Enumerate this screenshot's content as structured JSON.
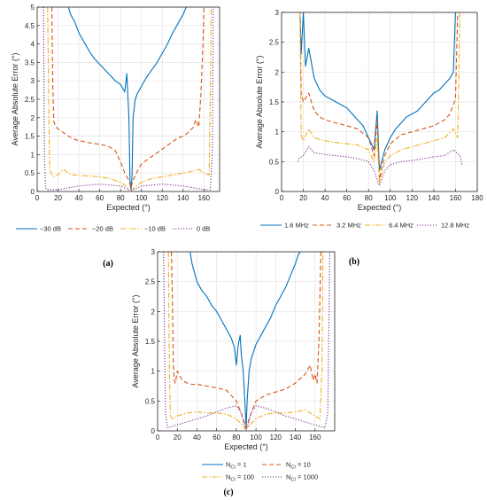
{
  "colors": {
    "blue": "#0072BD",
    "red": "#D95319",
    "yellow": "#EDB120",
    "purple": "#7E2F8E"
  },
  "chart_data": [
    {
      "panel": "(a)",
      "type": "line",
      "xlabel": "Expected (°)",
      "ylabel": "Average Absolute Error (°)",
      "xlim": [
        0,
        175
      ],
      "ylim": [
        0,
        5
      ],
      "xticks": [
        0,
        20,
        40,
        60,
        80,
        100,
        120,
        140,
        160
      ],
      "yticks": [
        0,
        0.5,
        1,
        1.5,
        2,
        2.5,
        3,
        3.5,
        4,
        4.5,
        5
      ],
      "grid": true,
      "legend_position": "below",
      "series": [
        {
          "name": "−30 dB",
          "color": "blue",
          "dash": "solid",
          "x": [
            30,
            32,
            36,
            40,
            45,
            50,
            55,
            60,
            65,
            70,
            75,
            80,
            84,
            86,
            88,
            89,
            90,
            91,
            92,
            94,
            96,
            100,
            105,
            110,
            115,
            120,
            125,
            130,
            135,
            140,
            143
          ],
          "y": [
            5.0,
            4.8,
            4.6,
            4.3,
            4.05,
            3.8,
            3.6,
            3.45,
            3.3,
            3.15,
            3.0,
            2.9,
            2.7,
            3.2,
            2.0,
            0.3,
            0.05,
            0.4,
            2.0,
            2.5,
            2.65,
            2.85,
            3.1,
            3.3,
            3.5,
            3.75,
            4.0,
            4.3,
            4.55,
            4.8,
            5.0
          ]
        },
        {
          "name": "−20 dB",
          "color": "red",
          "dash": "dash",
          "x": [
            14,
            15,
            16,
            18,
            20,
            25,
            30,
            35,
            40,
            45,
            50,
            55,
            60,
            65,
            70,
            75,
            80,
            84,
            88,
            90,
            92,
            96,
            100,
            105,
            110,
            115,
            120,
            125,
            130,
            135,
            140,
            145,
            150,
            152,
            155,
            157,
            159,
            160
          ],
          "y": [
            5.0,
            2.8,
            1.9,
            1.75,
            1.7,
            1.6,
            1.5,
            1.42,
            1.38,
            1.35,
            1.32,
            1.3,
            1.28,
            1.25,
            1.2,
            1.1,
            0.8,
            0.5,
            0.3,
            0.1,
            0.3,
            0.55,
            0.75,
            0.85,
            0.95,
            1.05,
            1.15,
            1.25,
            1.35,
            1.45,
            1.5,
            1.6,
            1.75,
            1.95,
            1.75,
            2.6,
            4.0,
            5.0
          ]
        },
        {
          "name": "−10 dB",
          "color": "yellow",
          "dash": "dashdot",
          "x": [
            10,
            11,
            12,
            14,
            16,
            20,
            25,
            30,
            35,
            40,
            50,
            60,
            70,
            80,
            85,
            88,
            90,
            92,
            95,
            100,
            110,
            120,
            130,
            140,
            150,
            155,
            160,
            165,
            166,
            167
          ],
          "y": [
            5.0,
            2.5,
            0.6,
            0.45,
            0.4,
            0.45,
            0.6,
            0.5,
            0.45,
            0.43,
            0.42,
            0.4,
            0.35,
            0.25,
            0.15,
            0.08,
            0.05,
            0.08,
            0.15,
            0.25,
            0.35,
            0.4,
            0.45,
            0.5,
            0.55,
            0.6,
            0.5,
            0.45,
            2.5,
            5.0
          ]
        },
        {
          "name": "0 dB",
          "color": "purple",
          "dash": "dot",
          "x": [
            6,
            7,
            8,
            10,
            20,
            40,
            60,
            80,
            90,
            100,
            120,
            140,
            160,
            166,
            168,
            169
          ],
          "y": [
            5.0,
            1.0,
            0.1,
            0.05,
            0.05,
            0.15,
            0.2,
            0.15,
            0.02,
            0.15,
            0.2,
            0.15,
            0.05,
            0.05,
            1.0,
            5.0
          ]
        }
      ]
    },
    {
      "panel": "(b)",
      "type": "line",
      "xlabel": "Expected (°)",
      "ylabel": "Average Absolute Error (°)",
      "xlim": [
        0,
        180
      ],
      "ylim": [
        0,
        3
      ],
      "xticks": [
        0,
        20,
        40,
        60,
        80,
        100,
        120,
        140,
        160,
        180
      ],
      "yticks": [
        0,
        0.5,
        1,
        1.5,
        2,
        2.5,
        3
      ],
      "grid": true,
      "legend_position": "below",
      "series": [
        {
          "name": "1.6 MHz",
          "color": "blue",
          "dash": "solid",
          "x": [
            17,
            18,
            20,
            22,
            25,
            30,
            35,
            40,
            45,
            50,
            55,
            60,
            65,
            70,
            75,
            80,
            85,
            88,
            90,
            92,
            95,
            100,
            105,
            110,
            115,
            120,
            125,
            130,
            135,
            140,
            145,
            150,
            155,
            158,
            160
          ],
          "y": [
            3.0,
            2.3,
            3.0,
            2.1,
            2.4,
            1.9,
            1.7,
            1.6,
            1.55,
            1.5,
            1.45,
            1.4,
            1.3,
            1.2,
            1.1,
            0.9,
            0.7,
            1.35,
            0.35,
            0.5,
            0.7,
            0.9,
            1.05,
            1.15,
            1.25,
            1.3,
            1.35,
            1.45,
            1.55,
            1.65,
            1.7,
            1.8,
            1.9,
            2.0,
            3.0
          ]
        },
        {
          "name": "3.2 MHz",
          "color": "red",
          "dash": "dash",
          "x": [
            17,
            18,
            20,
            25,
            30,
            35,
            40,
            50,
            60,
            70,
            80,
            85,
            88,
            90,
            92,
            95,
            100,
            110,
            120,
            130,
            140,
            150,
            155,
            160,
            162
          ],
          "y": [
            3.0,
            1.65,
            1.5,
            1.65,
            1.35,
            1.25,
            1.2,
            1.15,
            1.1,
            1.05,
            0.9,
            0.6,
            1.2,
            0.2,
            0.4,
            0.6,
            0.8,
            0.95,
            1.0,
            1.05,
            1.1,
            1.2,
            1.3,
            1.55,
            3.0
          ]
        },
        {
          "name": "6.4 MHz",
          "color": "yellow",
          "dash": "dashdot",
          "x": [
            17,
            18,
            20,
            25,
            30,
            40,
            50,
            60,
            70,
            80,
            85,
            88,
            90,
            92,
            95,
            100,
            110,
            120,
            130,
            140,
            150,
            158,
            162,
            164
          ],
          "y": [
            3.0,
            0.95,
            0.85,
            1.05,
            0.9,
            0.85,
            0.82,
            0.8,
            0.78,
            0.7,
            0.5,
            0.9,
            0.15,
            0.3,
            0.5,
            0.6,
            0.7,
            0.75,
            0.8,
            0.85,
            0.9,
            1.05,
            0.9,
            3.0
          ]
        },
        {
          "name": "12.8 MHz",
          "color": "purple",
          "dash": "dot",
          "x": [
            15,
            16,
            20,
            25,
            30,
            40,
            50,
            60,
            70,
            80,
            85,
            88,
            90,
            92,
            95,
            100,
            110,
            120,
            130,
            140,
            150,
            158,
            164,
            166
          ],
          "y": [
            0.5,
            0.55,
            0.6,
            0.75,
            0.65,
            0.62,
            0.6,
            0.58,
            0.55,
            0.5,
            0.35,
            0.2,
            0.1,
            0.2,
            0.35,
            0.45,
            0.5,
            0.52,
            0.55,
            0.58,
            0.6,
            0.7,
            0.6,
            0.45
          ]
        }
      ]
    },
    {
      "panel": "(c)",
      "type": "line",
      "xlabel": "Expected (°)",
      "ylabel": "Average Absolute Error (°)",
      "xlim": [
        0,
        180
      ],
      "ylim": [
        0,
        3
      ],
      "xticks": [
        0,
        20,
        40,
        60,
        80,
        100,
        120,
        140,
        160
      ],
      "yticks": [
        0,
        0.5,
        1,
        1.5,
        2,
        2.5,
        3
      ],
      "grid": true,
      "legend_position": "below",
      "series": [
        {
          "name_prefix": "N",
          "name_sub": "CI",
          "name_suffix": " = 1",
          "color": "blue",
          "dash": "solid",
          "x": [
            33,
            35,
            40,
            45,
            50,
            55,
            60,
            65,
            70,
            75,
            78,
            80,
            82,
            84,
            85,
            87,
            89,
            90,
            91,
            93,
            95,
            98,
            100,
            105,
            110,
            115,
            120,
            125,
            130,
            135,
            140,
            143,
            145
          ],
          "y": [
            3.0,
            2.8,
            2.5,
            2.35,
            2.25,
            2.1,
            2.0,
            1.85,
            1.7,
            1.55,
            1.4,
            1.1,
            1.45,
            1.6,
            1.3,
            1.0,
            0.4,
            0.05,
            0.5,
            1.0,
            1.2,
            1.35,
            1.45,
            1.6,
            1.75,
            1.9,
            2.1,
            2.25,
            2.4,
            2.6,
            2.8,
            2.95,
            3.0
          ]
        },
        {
          "name_prefix": "N",
          "name_sub": "CI",
          "name_suffix": " = 10",
          "color": "red",
          "dash": "dash",
          "x": [
            14,
            15,
            16,
            17,
            18,
            20,
            25,
            30,
            35,
            40,
            50,
            60,
            70,
            80,
            85,
            88,
            90,
            92,
            95,
            100,
            110,
            120,
            130,
            140,
            150,
            155,
            158,
            160,
            162,
            164,
            166
          ],
          "y": [
            3.0,
            2.2,
            1.1,
            0.85,
            0.8,
            1.0,
            0.85,
            0.8,
            0.78,
            0.78,
            0.75,
            0.72,
            0.68,
            0.5,
            0.3,
            0.15,
            0.05,
            0.15,
            0.3,
            0.5,
            0.6,
            0.65,
            0.7,
            0.8,
            0.95,
            1.1,
            0.85,
            0.95,
            0.8,
            1.5,
            3.0
          ]
        },
        {
          "name_prefix": "N",
          "name_sub": "CI",
          "name_suffix": " = 100",
          "color": "yellow",
          "dash": "dashdot",
          "x": [
            11,
            12,
            13,
            15,
            20,
            30,
            40,
            50,
            60,
            70,
            80,
            85,
            88,
            90,
            92,
            95,
            100,
            110,
            120,
            130,
            140,
            150,
            160,
            165,
            167,
            168
          ],
          "y": [
            3.0,
            1.0,
            0.25,
            0.2,
            0.25,
            0.3,
            0.32,
            0.3,
            0.3,
            0.28,
            0.2,
            0.12,
            0.05,
            0.03,
            0.05,
            0.12,
            0.2,
            0.28,
            0.3,
            0.3,
            0.32,
            0.35,
            0.25,
            0.2,
            1.0,
            3.0
          ]
        },
        {
          "name_prefix": "N",
          "name_sub": "CI",
          "name_suffix": " = 1000",
          "color": "purple",
          "dash": "dot",
          "x": [
            6,
            8,
            10,
            20,
            30,
            40,
            50,
            60,
            70,
            80,
            85,
            88,
            90,
            92,
            95,
            100,
            110,
            120,
            130,
            140,
            150,
            160,
            170,
            173,
            175
          ],
          "y": [
            3.0,
            0.3,
            0.05,
            0.1,
            0.15,
            0.2,
            0.25,
            0.32,
            0.38,
            0.42,
            0.3,
            0.1,
            0.02,
            0.1,
            0.3,
            0.42,
            0.38,
            0.32,
            0.25,
            0.2,
            0.15,
            0.1,
            0.05,
            0.3,
            3.0
          ]
        }
      ]
    }
  ]
}
